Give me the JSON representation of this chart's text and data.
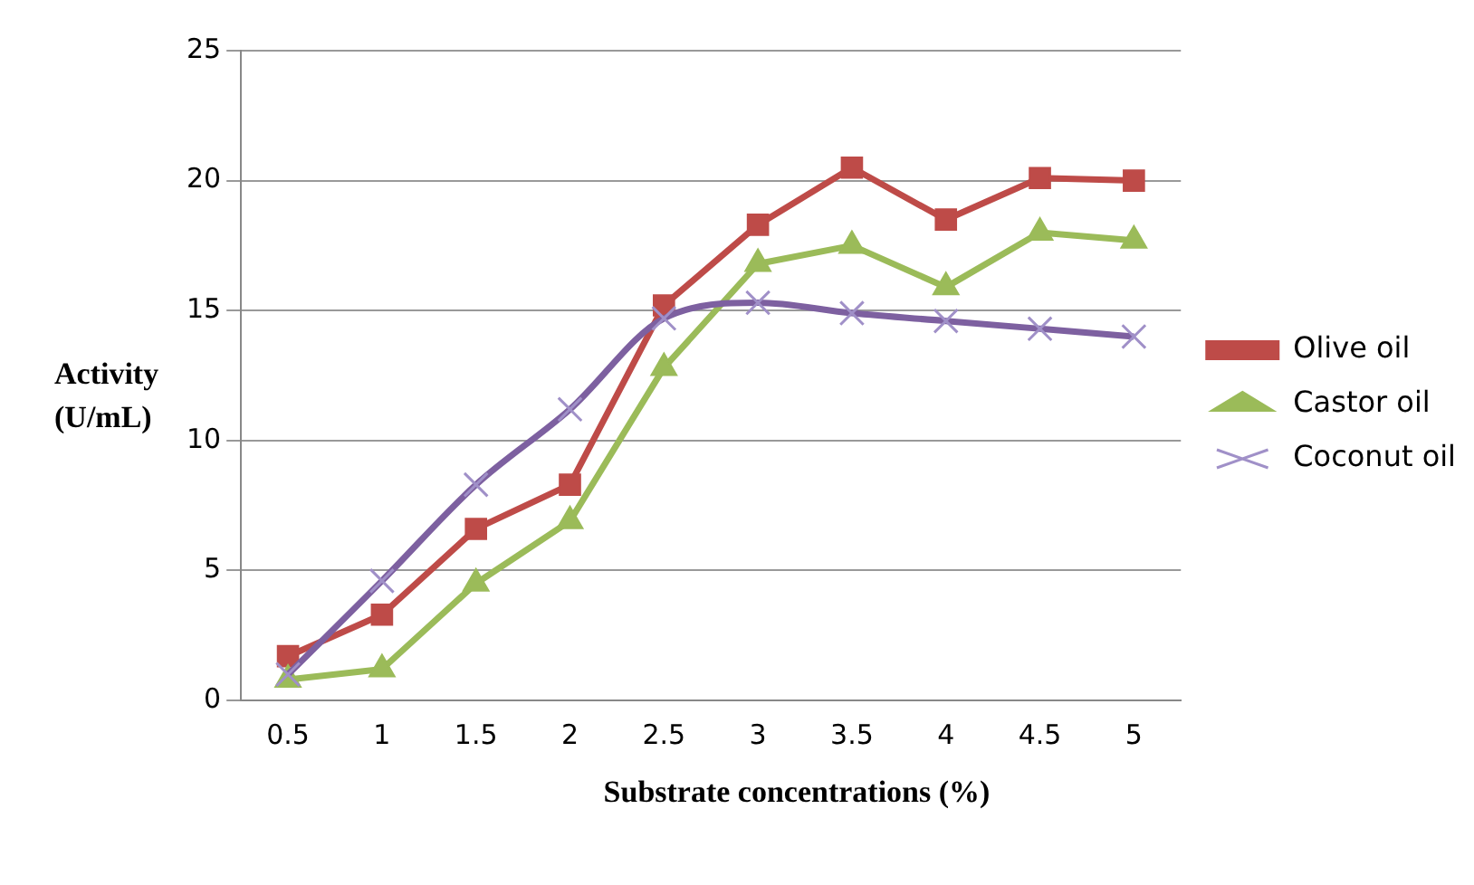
{
  "chart_data": {
    "type": "line",
    "xlabel": "Substrate concentrations (%)",
    "ylabel": "Activity (U/mL)",
    "categories": [
      "0.5",
      "1",
      "1.5",
      "2",
      "2.5",
      "3",
      "3.5",
      "4",
      "4.5",
      "5"
    ],
    "series": [
      {
        "name": "Olive oil",
        "color": "#be4b48",
        "marker": "square",
        "values": [
          1.7,
          3.3,
          6.6,
          8.3,
          15.2,
          18.3,
          20.5,
          18.5,
          20.1,
          20.0
        ]
      },
      {
        "name": "Castor oil",
        "color": "#9bbb59",
        "marker": "triangle",
        "values": [
          0.8,
          1.2,
          4.5,
          6.9,
          12.8,
          16.8,
          17.5,
          15.9,
          18.0,
          17.7
        ]
      },
      {
        "name": "Coconut oil",
        "color": "#7d60a0",
        "marker": "cross",
        "values": [
          1.0,
          4.6,
          8.3,
          11.2,
          14.7,
          15.3,
          14.9,
          14.6,
          14.3,
          14.0
        ]
      }
    ],
    "ylim": [
      0,
      25
    ],
    "yticks": [
      0,
      5,
      10,
      15,
      20,
      25
    ],
    "grid": "y",
    "legend": "right",
    "line_style": "solid"
  }
}
